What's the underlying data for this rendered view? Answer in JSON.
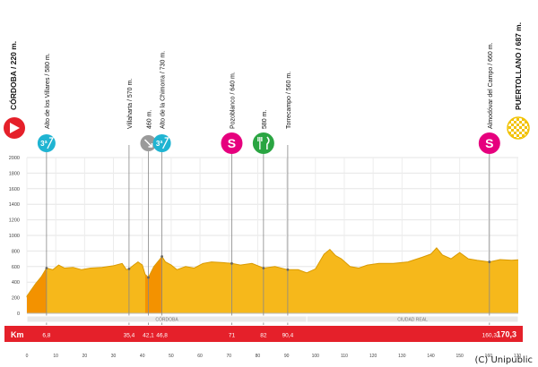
{
  "chart_data": {
    "type": "area",
    "title": "",
    "xlabel": "Km",
    "ylabel": "",
    "xlim": [
      0,
      170.3
    ],
    "ylim": [
      0,
      2000
    ],
    "y_ticks": [
      0,
      200,
      400,
      600,
      800,
      1000,
      1200,
      1400,
      1600,
      1800,
      2000
    ],
    "x_ticks": [
      0,
      10,
      20,
      30,
      40,
      50,
      60,
      70,
      80,
      90,
      100,
      110,
      120,
      130,
      140,
      150,
      160,
      170
    ],
    "fill_color": "#f6b81b",
    "highlight_color": "#f39200",
    "grid": true,
    "profile": [
      [
        0,
        220
      ],
      [
        1.5,
        300
      ],
      [
        3,
        380
      ],
      [
        5,
        470
      ],
      [
        6.8,
        580
      ],
      [
        9,
        560
      ],
      [
        11,
        620
      ],
      [
        13,
        580
      ],
      [
        16,
        590
      ],
      [
        19,
        560
      ],
      [
        22,
        580
      ],
      [
        26,
        590
      ],
      [
        30,
        610
      ],
      [
        33,
        640
      ],
      [
        34.5,
        560
      ],
      [
        35.4,
        570
      ],
      [
        37,
        620
      ],
      [
        38.5,
        660
      ],
      [
        40,
        620
      ],
      [
        41,
        500
      ],
      [
        42.1,
        460
      ],
      [
        44,
        600
      ],
      [
        46,
        690
      ],
      [
        46.8,
        730
      ],
      [
        48,
        660
      ],
      [
        50,
        620
      ],
      [
        52,
        560
      ],
      [
        55,
        600
      ],
      [
        58,
        580
      ],
      [
        61,
        640
      ],
      [
        64,
        660
      ],
      [
        68,
        650
      ],
      [
        71,
        640
      ],
      [
        74,
        620
      ],
      [
        78,
        640
      ],
      [
        82,
        580
      ],
      [
        86,
        600
      ],
      [
        90.4,
        560
      ],
      [
        94,
        560
      ],
      [
        97,
        520
      ],
      [
        100,
        570
      ],
      [
        103,
        760
      ],
      [
        105,
        820
      ],
      [
        107,
        740
      ],
      [
        109,
        700
      ],
      [
        112,
        600
      ],
      [
        115,
        580
      ],
      [
        118,
        620
      ],
      [
        122,
        640
      ],
      [
        127,
        640
      ],
      [
        132,
        660
      ],
      [
        137,
        720
      ],
      [
        140,
        760
      ],
      [
        142,
        840
      ],
      [
        144,
        750
      ],
      [
        147,
        700
      ],
      [
        150,
        780
      ],
      [
        153,
        700
      ],
      [
        156,
        680
      ],
      [
        160.3,
        660
      ],
      [
        164,
        690
      ],
      [
        168,
        680
      ],
      [
        170.3,
        687
      ]
    ],
    "highlight_segments": [
      [
        0,
        6.8
      ],
      [
        41,
        46.8
      ]
    ],
    "waypoints": [
      {
        "name": "CÓRDOBA",
        "label": "CÓRDOBA / 220 m.",
        "km": 0,
        "alt": 220,
        "km_label": "",
        "icon": "start-arrow-icon"
      },
      {
        "name": "Alto de los Villares",
        "label": "Alto de los Villares / 580 m.",
        "km": 6.8,
        "alt": 580,
        "km_label": "6,8",
        "icon": "climb-3rd-icon",
        "badge": "3ª"
      },
      {
        "name": "Villaharta",
        "label": "Villaharta / 570 m.",
        "km": 35.4,
        "alt": 570,
        "km_label": "35,4",
        "icon": ""
      },
      {
        "name": "460",
        "label": "460 m.",
        "km": 42.1,
        "alt": 460,
        "km_label": "42,1",
        "icon": "descent-icon"
      },
      {
        "name": "Alto de la Chimorra",
        "label": "Alto de la Chimorra / 730 m.",
        "km": 46.8,
        "alt": 730,
        "km_label": "46,8",
        "icon": "climb-3rd-icon",
        "badge": "3ª"
      },
      {
        "name": "Pozoblanco",
        "label": "Pozoblanco / 640 m.",
        "km": 71,
        "alt": 640,
        "km_label": "71",
        "icon": "sprint-icon",
        "badge": "S"
      },
      {
        "name": "580",
        "label": "580 m.",
        "km": 82,
        "alt": 580,
        "km_label": "82",
        "icon": "feed-zone-icon"
      },
      {
        "name": "Torrecampo",
        "label": "Torrecampo / 560 m.",
        "km": 90.4,
        "alt": 560,
        "km_label": "90,4",
        "icon": ""
      },
      {
        "name": "Almodóvar del Campo",
        "label": "Almodóvar del Campo / 660 m.",
        "km": 160.3,
        "alt": 660,
        "km_label": "160,3",
        "icon": "sprint-icon",
        "badge": "S"
      },
      {
        "name": "PUERTOLLANO",
        "label": "PUERTOLLANO / 687 m.",
        "km": 170.3,
        "alt": 687,
        "km_label": "170,3",
        "icon": "finish-flag-icon"
      }
    ],
    "regions": [
      {
        "name": "CÓRDOBA",
        "from": 0,
        "to": 97
      },
      {
        "name": "CIUDAD REAL",
        "from": 97,
        "to": 170.3
      }
    ]
  },
  "colors": {
    "start": "#e5202a",
    "descent": "#9a9a9a",
    "climb": "#1fb4d2",
    "sprint": "#e6007e",
    "feed": "#2aa542",
    "finish": "#f2c200",
    "km_bar": "#e5202a"
  },
  "credit": "(C) Unipublic"
}
